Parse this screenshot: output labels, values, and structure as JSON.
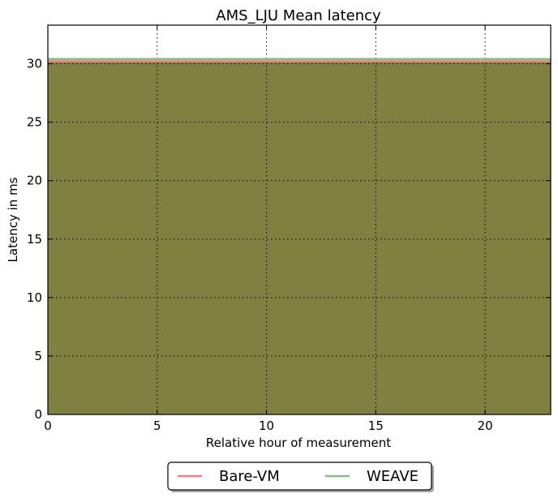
{
  "chart_data": {
    "type": "area",
    "title": "AMS_LJU Mean latency",
    "xlabel": "Relative hour of measurement",
    "ylabel": "Latency in ms",
    "xlim": [
      0,
      23
    ],
    "ylim": [
      0,
      33.3
    ],
    "xticks": [
      0,
      5,
      10,
      15,
      20
    ],
    "yticks": [
      0,
      5,
      10,
      15,
      20,
      25,
      30
    ],
    "grid": true,
    "legend_placement": "bottom-center-outside",
    "series": [
      {
        "name": "Bare-VM",
        "color": "#f08080",
        "x": [
          0,
          1,
          2,
          3,
          4,
          5,
          6,
          7,
          8,
          9,
          10,
          11,
          12,
          13,
          14,
          15,
          16,
          17,
          18,
          19,
          20,
          21,
          22,
          23
        ],
        "values": [
          30.2,
          30.2,
          30.2,
          30.2,
          30.2,
          30.2,
          30.2,
          30.2,
          30.2,
          30.2,
          30.2,
          30.2,
          30.2,
          30.2,
          30.2,
          30.2,
          30.2,
          30.2,
          30.2,
          30.2,
          30.2,
          30.2,
          30.2,
          30.2
        ]
      },
      {
        "name": "WEAVE",
        "color": "#80c080",
        "x": [
          0,
          1,
          2,
          3,
          4,
          5,
          6,
          7,
          8,
          9,
          10,
          11,
          12,
          13,
          14,
          15,
          16,
          17,
          18,
          19,
          20,
          21,
          22,
          23
        ],
        "values": [
          30.4,
          30.4,
          30.4,
          30.4,
          30.4,
          30.4,
          30.4,
          30.4,
          30.4,
          30.4,
          30.4,
          30.4,
          30.4,
          30.4,
          30.4,
          30.4,
          30.4,
          30.4,
          30.4,
          30.4,
          30.4,
          30.4,
          30.4,
          30.4
        ]
      }
    ],
    "fill_color": "#808040"
  }
}
